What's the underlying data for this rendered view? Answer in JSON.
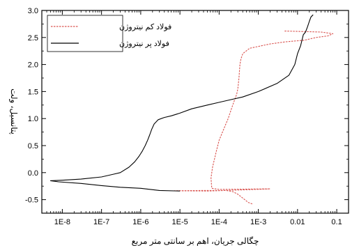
{
  "chart_data": {
    "type": "line",
    "x_scale": "log",
    "xlim": [
      3e-09,
      0.2
    ],
    "ylim": [
      -0.75,
      3.0
    ],
    "xlabel": "چگالی جریان، اهم بر سانتی متر مربع",
    "ylabel": "پتانسیل، ولت",
    "x_ticks": [
      1e-08,
      1e-07,
      1e-06,
      1e-05,
      0.0001,
      0.001,
      0.01,
      0.1
    ],
    "x_tick_labels": [
      "1E-8",
      "1E-7",
      "1E-6",
      "1E-5",
      "1E-4",
      "1E-3",
      "0.01",
      "0.1"
    ],
    "y_ticks": [
      -0.5,
      0.0,
      0.5,
      1.0,
      1.5,
      2.0,
      2.5,
      3.0
    ],
    "y_tick_labels": [
      "-0.5",
      "0.0",
      "0.5",
      "1.0",
      "1.5",
      "2.0",
      "2.5",
      "3.0"
    ],
    "grid": false,
    "legend_position": "top-left",
    "series": [
      {
        "name": "فولاد کم نیتروژن",
        "color": "#d9534f",
        "dash": true,
        "points": [
          [
            0.0007,
            -0.58
          ],
          [
            0.00055,
            -0.55
          ],
          [
            0.0004,
            -0.47
          ],
          [
            0.0003,
            -0.4
          ],
          [
            0.00022,
            -0.35
          ],
          [
            0.00015,
            -0.33
          ],
          [
            5e-05,
            -0.34
          ],
          [
            7.2e-06,
            -0.335
          ],
          [
            4.5e-05,
            -0.33
          ],
          [
            0.00014,
            -0.33
          ],
          [
            0.0004,
            -0.32
          ],
          [
            0.002,
            -0.3
          ],
          [
            0.0001,
            -0.31
          ],
          [
            6.5e-05,
            -0.29
          ],
          [
            6.2e-05,
            -0.1
          ],
          [
            6.8e-05,
            0.1
          ],
          [
            8.5e-05,
            0.4
          ],
          [
            0.0001,
            0.6
          ],
          [
            0.00013,
            0.8
          ],
          [
            0.00017,
            1.0
          ],
          [
            0.00021,
            1.2
          ],
          [
            0.00025,
            1.35
          ],
          [
            0.00028,
            1.45
          ],
          [
            0.0003,
            1.55
          ],
          [
            0.00032,
            1.75
          ],
          [
            0.00034,
            2.0
          ],
          [
            0.00036,
            2.1
          ],
          [
            0.0004,
            2.2
          ],
          [
            0.0006,
            2.3
          ],
          [
            0.002,
            2.38
          ],
          [
            0.005,
            2.42
          ],
          [
            0.015,
            2.45
          ],
          [
            0.03,
            2.5
          ],
          [
            0.06,
            2.53
          ],
          [
            0.08,
            2.57
          ],
          [
            0.04,
            2.6
          ],
          [
            0.0045,
            2.62
          ]
        ]
      },
      {
        "name": "فولاد پر نیتروژن",
        "color": "#000000",
        "dash": false,
        "points": [
          [
            1e-05,
            -0.34
          ],
          [
            3e-06,
            -0.33
          ],
          [
            1e-06,
            -0.29
          ],
          [
            3e-07,
            -0.27
          ],
          [
            1e-07,
            -0.24
          ],
          [
            3e-08,
            -0.2
          ],
          [
            8e-09,
            -0.17
          ],
          [
            5e-09,
            -0.15
          ],
          [
            1e-08,
            -0.14
          ],
          [
            3e-08,
            -0.12
          ],
          [
            1e-07,
            -0.08
          ],
          [
            2e-07,
            -0.03
          ],
          [
            3e-07,
            0.0
          ],
          [
            5e-07,
            0.1
          ],
          [
            7e-07,
            0.2
          ],
          [
            9e-07,
            0.3
          ],
          [
            1.1e-06,
            0.4
          ],
          [
            1.3e-06,
            0.5
          ],
          [
            1.5e-06,
            0.6
          ],
          [
            1.7e-06,
            0.7
          ],
          [
            1.9e-06,
            0.8
          ],
          [
            2.2e-06,
            0.9
          ],
          [
            2.8e-06,
            0.98
          ],
          [
            4e-06,
            1.02
          ],
          [
            6e-06,
            1.05
          ],
          [
            1e-05,
            1.1
          ],
          [
            2e-05,
            1.18
          ],
          [
            5e-05,
            1.25
          ],
          [
            0.0001,
            1.3
          ],
          [
            0.0002,
            1.35
          ],
          [
            0.0004,
            1.4
          ],
          [
            0.001,
            1.5
          ],
          [
            0.003,
            1.65
          ],
          [
            0.006,
            1.8
          ],
          [
            0.0085,
            2.0
          ],
          [
            0.01,
            2.2
          ],
          [
            0.012,
            2.35
          ],
          [
            0.013,
            2.45
          ],
          [
            0.014,
            2.55
          ],
          [
            0.016,
            2.6
          ],
          [
            0.018,
            2.7
          ],
          [
            0.02,
            2.8
          ],
          [
            0.022,
            2.88
          ],
          [
            0.025,
            2.92
          ]
        ]
      }
    ]
  }
}
